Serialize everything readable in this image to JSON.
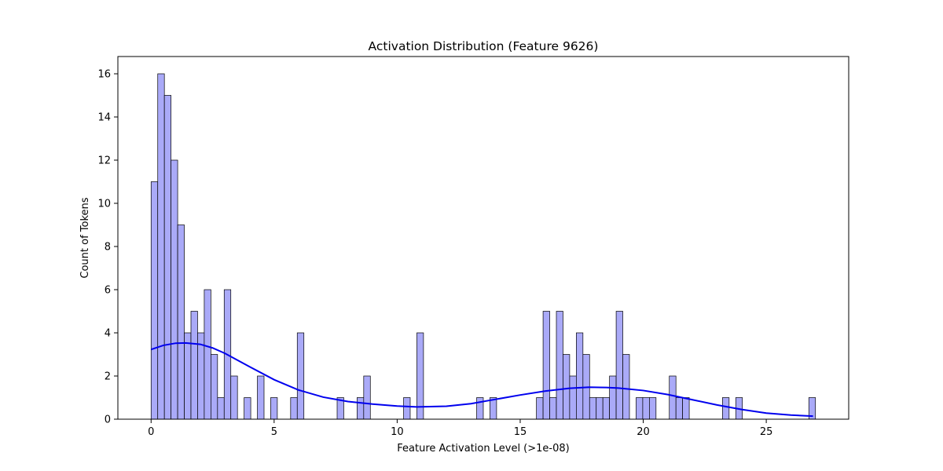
{
  "chart_data": {
    "type": "bar",
    "title": "Activation Distribution (Feature 9626)",
    "xlabel": "Feature Activation Level (>1e-08)",
    "ylabel": "Count of Tokens",
    "xlim": [
      -1.35,
      28.35
    ],
    "ylim": [
      0,
      16.8
    ],
    "x_ticks": [
      0,
      5,
      10,
      15,
      20,
      25
    ],
    "y_ticks": [
      0,
      2,
      4,
      6,
      8,
      10,
      12,
      14,
      16
    ],
    "x_tick_labels": [
      "0",
      "5",
      "10",
      "15",
      "20",
      "25"
    ],
    "y_tick_labels": [
      "0",
      "2",
      "4",
      "6",
      "8",
      "10",
      "12",
      "14",
      "16"
    ],
    "bin_width": 0.27,
    "bins_start": [
      0.0,
      0.27,
      0.54,
      0.81,
      1.08,
      1.35,
      1.62,
      1.89,
      2.16,
      2.43,
      2.7,
      2.97,
      3.24,
      3.78,
      4.32,
      4.86,
      5.67,
      5.94,
      7.56,
      8.37,
      8.64,
      10.26,
      10.8,
      13.23,
      13.77,
      15.66,
      15.93,
      16.2,
      16.47,
      16.74,
      17.01,
      17.28,
      17.55,
      17.82,
      18.09,
      18.36,
      18.63,
      18.9,
      19.17,
      19.71,
      19.98,
      20.25,
      21.06,
      21.33,
      21.6,
      23.22,
      23.76,
      26.73
    ],
    "values": [
      11,
      16,
      15,
      12,
      9,
      4,
      5,
      4,
      6,
      3,
      1,
      6,
      2,
      1,
      2,
      1,
      1,
      4,
      1,
      1,
      2,
      1,
      4,
      1,
      1,
      1,
      5,
      1,
      5,
      3,
      2,
      4,
      3,
      1,
      1,
      1,
      2,
      5,
      3,
      1,
      1,
      1,
      2,
      1,
      1,
      1,
      1,
      1
    ],
    "kde": {
      "x": [
        0.0,
        0.5,
        1.0,
        1.4,
        2.0,
        2.5,
        3.0,
        4.0,
        5.0,
        6.0,
        7.0,
        8.0,
        9.0,
        10.0,
        10.8,
        12.0,
        13.0,
        14.0,
        15.0,
        16.0,
        17.0,
        17.8,
        18.5,
        19.0,
        20.0,
        21.0,
        22.0,
        23.0,
        24.0,
        25.0,
        26.0,
        26.9
      ],
      "y": [
        3.23,
        3.42,
        3.52,
        3.53,
        3.47,
        3.3,
        3.05,
        2.43,
        1.83,
        1.35,
        1.02,
        0.82,
        0.7,
        0.61,
        0.57,
        0.6,
        0.72,
        0.92,
        1.12,
        1.3,
        1.43,
        1.48,
        1.47,
        1.44,
        1.33,
        1.14,
        0.9,
        0.66,
        0.45,
        0.28,
        0.19,
        0.14
      ]
    },
    "colors": {
      "bar_fill": "#aaaaf8",
      "bar_edge": "#000000",
      "kde_line": "#0000ee",
      "axes": "#000000"
    },
    "grid": false,
    "legend": "none"
  }
}
